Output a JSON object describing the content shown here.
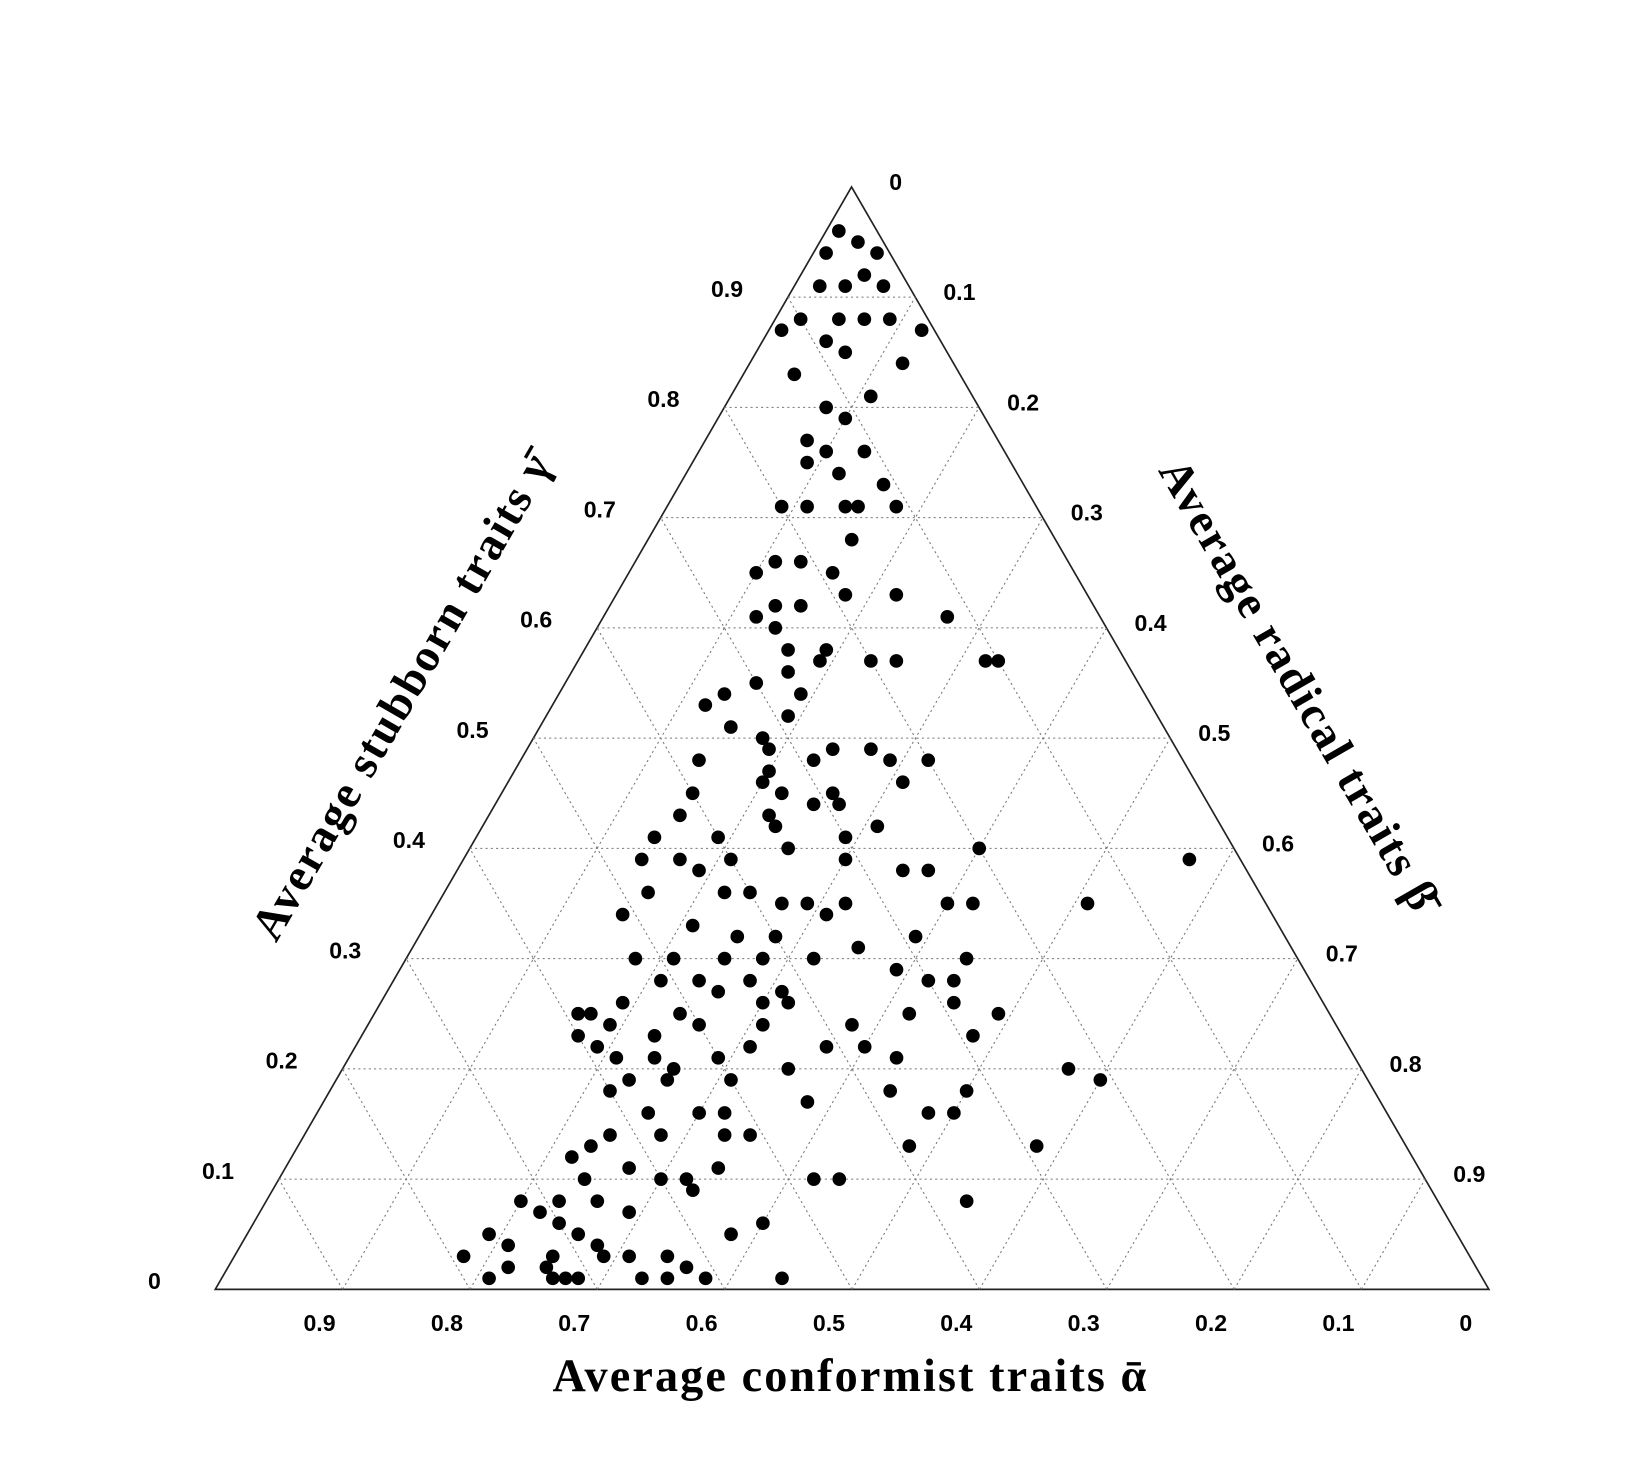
{
  "chart_data": {
    "type": "ternary",
    "grid": true,
    "alpha_axis": {
      "label": "Average conformist traits ᾱ",
      "ticks": [
        0.9,
        0.8,
        0.7,
        0.6,
        0.5,
        0.4,
        0.3,
        0.2,
        0.1,
        0
      ]
    },
    "beta_axis": {
      "label": "Average radical traits β̄",
      "ticks": [
        0,
        0.1,
        0.2,
        0.3,
        0.4,
        0.5,
        0.6,
        0.7,
        0.8,
        0.9
      ]
    },
    "gamma_axis": {
      "label": "Average stubborn traits γ̄",
      "ticks": [
        0,
        0.1,
        0.2,
        0.3,
        0.4,
        0.5,
        0.6,
        0.7,
        0.8,
        0.9
      ]
    },
    "series": [
      {
        "color": "#000000",
        "gamma": [
          0.96,
          0.95,
          0.94,
          0.94,
          0.91,
          0.92,
          0.91,
          0.91,
          0.88,
          0.88,
          0.88,
          0.88,
          0.87,
          0.87,
          0.86,
          0.85,
          0.83,
          0.84,
          0.8,
          0.81,
          0.79,
          0.77,
          0.76,
          0.76,
          0.75,
          0.74,
          0.73,
          0.71,
          0.71,
          0.71,
          0.71,
          0.71,
          0.68,
          0.66,
          0.66,
          0.65,
          0.65,
          0.63,
          0.62,
          0.62,
          0.61,
          0.63,
          0.61,
          0.6,
          0.58,
          0.58,
          0.57,
          0.57,
          0.57,
          0.57,
          0.57,
          0.56,
          0.55,
          0.54,
          0.54,
          0.53,
          0.52,
          0.51,
          0.5,
          0.49,
          0.49,
          0.49,
          0.48,
          0.48,
          0.48,
          0.48,
          0.47,
          0.46,
          0.46,
          0.45,
          0.45,
          0.44,
          0.45,
          0.44,
          0.43,
          0.43,
          0.42,
          0.42,
          0.41,
          0.41,
          0.41,
          0.4,
          0.39,
          0.39,
          0.39,
          0.39,
          0.4,
          0.39,
          0.38,
          0.38,
          0.38,
          0.36,
          0.36,
          0.36,
          0.35,
          0.35,
          0.35,
          0.35,
          0.35,
          0.34,
          0.35,
          0.34,
          0.32,
          0.33,
          0.32,
          0.31,
          0.32,
          0.3,
          0.3,
          0.3,
          0.3,
          0.3,
          0.3,
          0.29,
          0.28,
          0.28,
          0.28,
          0.28,
          0.27,
          0.27,
          0.28,
          0.26,
          0.26,
          0.26,
          0.26,
          0.25,
          0.25,
          0.25,
          0.25,
          0.25,
          0.24,
          0.23,
          0.24,
          0.24,
          0.24,
          0.23,
          0.23,
          0.22,
          0.22,
          0.22,
          0.22,
          0.21,
          0.21,
          0.21,
          0.2,
          0.21,
          0.2,
          0.19,
          0.2,
          0.19,
          0.18,
          0.19,
          0.19,
          0.18,
          0.18,
          0.17,
          0.16,
          0.16,
          0.16,
          0.16,
          0.16,
          0.14,
          0.14,
          0.14,
          0.13,
          0.14,
          0.13,
          0.13,
          0.12,
          0.11,
          0.11,
          0.1,
          0.1,
          0.1,
          0.1,
          0.1,
          0.08,
          0.08,
          0.09,
          0.08,
          0.08,
          0.07,
          0.07,
          0.06,
          0.06,
          0.05,
          0.05,
          0.05,
          0.04,
          0.04,
          0.03,
          0.03,
          0.03,
          0.03,
          0.02,
          0.03,
          0.02,
          0.01,
          0.02,
          0.01,
          0.01,
          0.01,
          0.01,
          0.01,
          0.01,
          0.01
        ],
        "beta": [
          0.01,
          0.03,
          0.01,
          0.05,
          0.02,
          0.05,
          0.07,
          0.04,
          0.02,
          0.05,
          0.07,
          0.09,
          0.01,
          0.12,
          0.05,
          0.07,
          0.04,
          0.12,
          0.08,
          0.11,
          0.1,
          0.08,
          0.1,
          0.13,
          0.09,
          0.12,
          0.16,
          0.18,
          0.09,
          0.11,
          0.14,
          0.15,
          0.16,
          0.11,
          0.13,
          0.1,
          0.16,
          0.22,
          0.13,
          0.15,
          0.12,
          0.18,
          0.27,
          0.14,
          0.16,
          0.19,
          0.19,
          0.23,
          0.25,
          0.32,
          0.33,
          0.17,
          0.15,
          0.19,
          0.13,
          0.12,
          0.19,
          0.15,
          0.18,
          0.19,
          0.27,
          0.24,
          0.23,
          0.32,
          0.29,
          0.14,
          0.2,
          0.31,
          0.2,
          0.22,
          0.26,
          0.25,
          0.15,
          0.27,
          0.22,
          0.15,
          0.31,
          0.23,
          0.14,
          0.19,
          0.29,
          0.4,
          0.57,
          0.14,
          0.17,
          0.21,
          0.25,
          0.3,
          0.37,
          0.35,
          0.19,
          0.24,
          0.22,
          0.16,
          0.27,
          0.29,
          0.42,
          0.51,
          0.32,
          0.31,
          0.4,
          0.15,
          0.28,
          0.21,
          0.25,
          0.35,
          0.39,
          0.44,
          0.18,
          0.21,
          0.25,
          0.28,
          0.32,
          0.39,
          0.42,
          0.21,
          0.24,
          0.28,
          0.26,
          0.31,
          0.44,
          0.19,
          0.32,
          0.3,
          0.45,
          0.16,
          0.17,
          0.24,
          0.49,
          0.42,
          0.19,
          0.23,
          0.31,
          0.38,
          0.26,
          0.48,
          0.17,
          0.19,
          0.31,
          0.4,
          0.37,
          0.43,
          0.21,
          0.24,
          0.26,
          0.29,
          0.57,
          0.6,
          0.35,
          0.23,
          0.22,
          0.26,
          0.31,
          0.5,
          0.44,
          0.38,
          0.5,
          0.48,
          0.3,
          0.32,
          0.26,
          0.35,
          0.24,
          0.28,
          0.23,
          0.33,
          0.58,
          0.48,
          0.22,
          0.27,
          0.34,
          0.24,
          0.32,
          0.42,
          0.44,
          0.3,
          0.26,
          0.23,
          0.33,
          0.55,
          0.2,
          0.22,
          0.29,
          0.24,
          0.4,
          0.38,
          0.19,
          0.26,
          0.21,
          0.28,
          0.18,
          0.25,
          0.31,
          0.34,
          0.22,
          0.29,
          0.36,
          0.21,
          0.25,
          0.26,
          0.28,
          0.33,
          0.35,
          0.38,
          0.44,
          0.27
        ],
        "alpha": [
          0.03,
          0.02,
          0.05,
          0.01,
          0.07,
          0.03,
          0.02,
          0.05,
          0.1,
          0.07,
          0.05,
          0.03,
          0.12,
          0.01,
          0.09,
          0.08,
          0.13,
          0.04,
          0.12,
          0.08,
          0.11,
          0.15,
          0.14,
          0.11,
          0.16,
          0.14,
          0.11,
          0.11,
          0.2,
          0.18,
          0.15,
          0.14,
          0.16,
          0.23,
          0.21,
          0.25,
          0.19,
          0.15,
          0.25,
          0.23,
          0.27,
          0.19,
          0.12,
          0.26,
          0.26,
          0.23,
          0.24,
          0.2,
          0.18,
          0.11,
          0.1,
          0.27,
          0.3,
          0.27,
          0.33,
          0.35,
          0.29,
          0.34,
          0.32,
          0.32,
          0.24,
          0.27,
          0.29,
          0.2,
          0.23,
          0.38,
          0.33,
          0.23,
          0.34,
          0.33,
          0.29,
          0.31,
          0.4,
          0.29,
          0.35,
          0.42,
          0.27,
          0.35,
          0.45,
          0.4,
          0.3,
          0.2,
          0.04,
          0.47,
          0.44,
          0.4,
          0.35,
          0.31,
          0.25,
          0.27,
          0.43,
          0.4,
          0.42,
          0.48,
          0.38,
          0.36,
          0.23,
          0.14,
          0.33,
          0.35,
          0.25,
          0.51,
          0.4,
          0.46,
          0.43,
          0.34,
          0.29,
          0.26,
          0.52,
          0.49,
          0.45,
          0.42,
          0.38,
          0.32,
          0.3,
          0.51,
          0.48,
          0.44,
          0.47,
          0.42,
          0.28,
          0.55,
          0.42,
          0.44,
          0.29,
          0.59,
          0.58,
          0.51,
          0.26,
          0.33,
          0.57,
          0.54,
          0.45,
          0.38,
          0.5,
          0.29,
          0.6,
          0.59,
          0.47,
          0.38,
          0.41,
          0.36,
          0.58,
          0.55,
          0.54,
          0.5,
          0.23,
          0.21,
          0.45,
          0.58,
          0.6,
          0.55,
          0.5,
          0.32,
          0.38,
          0.45,
          0.34,
          0.36,
          0.54,
          0.52,
          0.58,
          0.51,
          0.62,
          0.58,
          0.64,
          0.53,
          0.29,
          0.39,
          0.66,
          0.62,
          0.55,
          0.66,
          0.58,
          0.48,
          0.46,
          0.6,
          0.66,
          0.69,
          0.58,
          0.37,
          0.72,
          0.71,
          0.64,
          0.7,
          0.54,
          0.57,
          0.76,
          0.69,
          0.75,
          0.68,
          0.79,
          0.72,
          0.66,
          0.63,
          0.76,
          0.68,
          0.62,
          0.78,
          0.73,
          0.73,
          0.71,
          0.66,
          0.64,
          0.61,
          0.55,
          0.72
        ]
      }
    ]
  }
}
